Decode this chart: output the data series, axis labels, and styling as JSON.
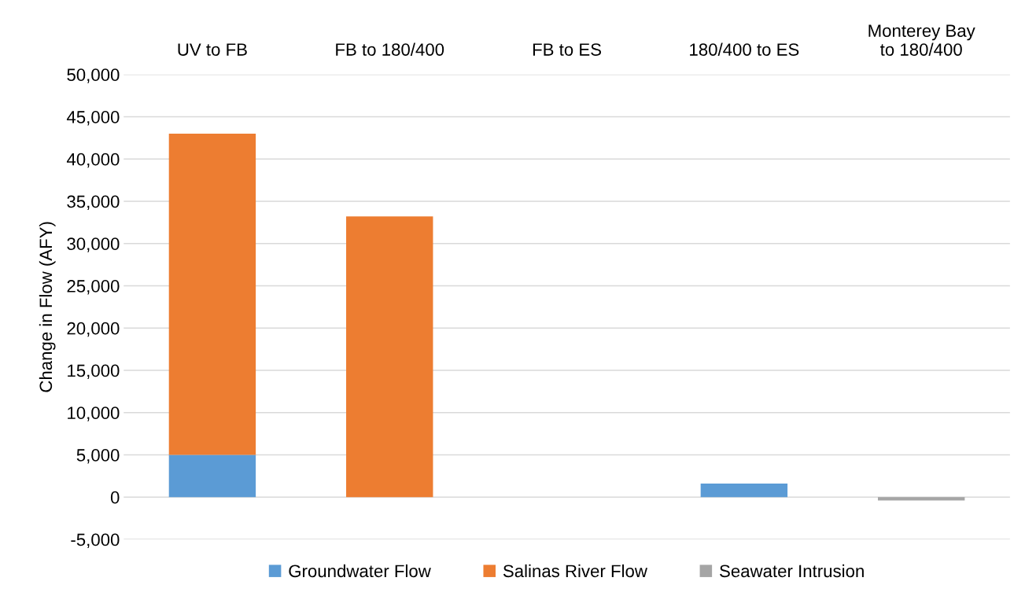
{
  "chart_data": {
    "type": "bar",
    "stacked": true,
    "ylabel": "Change in Flow (AFY)",
    "categories": [
      "UV to FB",
      "FB to 180/400",
      "FB to ES",
      "180/400 to ES",
      "Monterey Bay to 180/400"
    ],
    "series": [
      {
        "name": "Groundwater Flow",
        "color": "#5b9bd5",
        "values": [
          5000,
          0,
          0,
          1600,
          0
        ]
      },
      {
        "name": "Salinas River Flow",
        "color": "#ed7d31",
        "values": [
          38000,
          33200,
          0,
          0,
          0
        ]
      },
      {
        "name": "Seawater Intrusion",
        "color": "#a5a5a5",
        "values": [
          0,
          0,
          0,
          0,
          -400
        ]
      }
    ],
    "ylim": [
      -5000,
      50000
    ],
    "yticks": [
      {
        "value": -5000,
        "label": "-5,000"
      },
      {
        "value": 0,
        "label": "0"
      },
      {
        "value": 5000,
        "label": "5,000"
      },
      {
        "value": 10000,
        "label": "10,000"
      },
      {
        "value": 15000,
        "label": "15,000"
      },
      {
        "value": 20000,
        "label": "20,000"
      },
      {
        "value": 25000,
        "label": "25,000"
      },
      {
        "value": 30000,
        "label": "30,000"
      },
      {
        "value": 35000,
        "label": "35,000"
      },
      {
        "value": 40000,
        "label": "40,000"
      },
      {
        "value": 45000,
        "label": "45,000"
      },
      {
        "value": 50000,
        "label": "50,000"
      }
    ],
    "grid": "y",
    "legend": "bottom"
  }
}
